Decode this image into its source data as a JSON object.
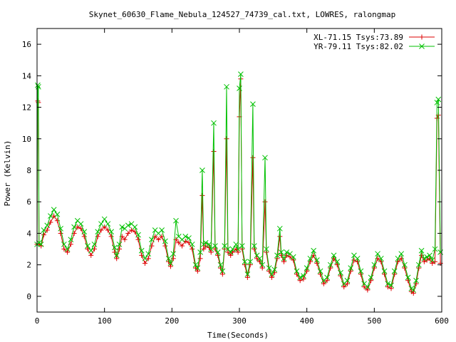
{
  "chart_data": {
    "type": "line",
    "title": "Skynet_60630_Flame_Nebula_124527_74739_cal.txt, LOWRES, ralongmap",
    "xlabel": "Time(Seconds)",
    "ylabel": "Power (Kelvin)",
    "xlim": [
      0,
      600
    ],
    "ylim": [
      -1,
      17
    ],
    "x_ticks": [
      "0",
      "100",
      "200",
      "300",
      "400",
      "500",
      "600"
    ],
    "y_ticks": [
      "0",
      "2",
      "4",
      "6",
      "8",
      "10",
      "12",
      "14",
      "16"
    ],
    "x_tick_values": [
      0,
      100,
      200,
      300,
      400,
      500,
      600
    ],
    "y_tick_values": [
      0,
      2,
      4,
      6,
      8,
      10,
      12,
      14,
      16
    ],
    "grid": false,
    "legend_position": "top-right",
    "series": [
      {
        "name": "XL-71.15 Tsys:73.89",
        "color": "#dd0000",
        "marker": "plus",
        "points": [
          [
            0,
            3.3
          ],
          [
            1,
            12.4
          ],
          [
            2,
            12.3
          ],
          [
            3,
            3.3
          ],
          [
            6,
            3.2
          ],
          [
            10,
            3.9
          ],
          [
            15,
            4.2
          ],
          [
            20,
            4.7
          ],
          [
            25,
            5.1
          ],
          [
            30,
            4.8
          ],
          [
            35,
            4.0
          ],
          [
            40,
            3.0
          ],
          [
            45,
            2.8
          ],
          [
            50,
            3.3
          ],
          [
            55,
            4.0
          ],
          [
            60,
            4.4
          ],
          [
            65,
            4.3
          ],
          [
            70,
            3.8
          ],
          [
            75,
            3.0
          ],
          [
            80,
            2.6
          ],
          [
            85,
            3.0
          ],
          [
            90,
            3.8
          ],
          [
            95,
            4.2
          ],
          [
            100,
            4.4
          ],
          [
            105,
            4.2
          ],
          [
            110,
            3.8
          ],
          [
            115,
            2.8
          ],
          [
            118,
            2.4
          ],
          [
            122,
            3.0
          ],
          [
            126,
            3.8
          ],
          [
            130,
            3.6
          ],
          [
            135,
            4.0
          ],
          [
            140,
            4.2
          ],
          [
            145,
            4.1
          ],
          [
            150,
            3.6
          ],
          [
            155,
            2.6
          ],
          [
            160,
            2.1
          ],
          [
            165,
            2.4
          ],
          [
            170,
            3.2
          ],
          [
            175,
            3.8
          ],
          [
            180,
            3.6
          ],
          [
            185,
            3.8
          ],
          [
            190,
            3.2
          ],
          [
            195,
            2.2
          ],
          [
            198,
            1.9
          ],
          [
            202,
            2.4
          ],
          [
            206,
            3.6
          ],
          [
            210,
            3.4
          ],
          [
            215,
            3.2
          ],
          [
            220,
            3.5
          ],
          [
            225,
            3.4
          ],
          [
            230,
            3.0
          ],
          [
            235,
            1.8
          ],
          [
            238,
            1.6
          ],
          [
            242,
            2.4
          ],
          [
            245,
            6.4
          ],
          [
            247,
            3.0
          ],
          [
            250,
            3.2
          ],
          [
            255,
            3.1
          ],
          [
            258,
            2.8
          ],
          [
            262,
            9.2
          ],
          [
            264,
            3.0
          ],
          [
            268,
            2.6
          ],
          [
            272,
            1.8
          ],
          [
            275,
            1.4
          ],
          [
            278,
            3.0
          ],
          [
            281,
            10.0
          ],
          [
            283,
            2.8
          ],
          [
            287,
            2.6
          ],
          [
            290,
            2.8
          ],
          [
            295,
            3.0
          ],
          [
            298,
            2.8
          ],
          [
            300,
            11.4
          ],
          [
            302,
            13.8
          ],
          [
            304,
            3.0
          ],
          [
            308,
            2.0
          ],
          [
            312,
            1.2
          ],
          [
            316,
            2.0
          ],
          [
            320,
            8.8
          ],
          [
            322,
            3.0
          ],
          [
            326,
            2.4
          ],
          [
            330,
            2.2
          ],
          [
            334,
            1.8
          ],
          [
            338,
            6.0
          ],
          [
            340,
            2.8
          ],
          [
            344,
            1.6
          ],
          [
            348,
            1.2
          ],
          [
            352,
            1.5
          ],
          [
            356,
            2.4
          ],
          [
            360,
            3.8
          ],
          [
            362,
            2.6
          ],
          [
            366,
            2.2
          ],
          [
            370,
            2.6
          ],
          [
            375,
            2.5
          ],
          [
            380,
            2.3
          ],
          [
            385,
            1.4
          ],
          [
            390,
            1.0
          ],
          [
            395,
            1.1
          ],
          [
            400,
            1.6
          ],
          [
            405,
            2.2
          ],
          [
            410,
            2.6
          ],
          [
            415,
            2.1
          ],
          [
            420,
            1.4
          ],
          [
            425,
            0.8
          ],
          [
            430,
            1.0
          ],
          [
            435,
            1.8
          ],
          [
            440,
            2.4
          ],
          [
            445,
            2.0
          ],
          [
            450,
            1.3
          ],
          [
            455,
            0.6
          ],
          [
            460,
            0.8
          ],
          [
            465,
            1.6
          ],
          [
            470,
            2.3
          ],
          [
            475,
            2.2
          ],
          [
            480,
            1.4
          ],
          [
            485,
            0.6
          ],
          [
            490,
            0.4
          ],
          [
            495,
            1.0
          ],
          [
            500,
            1.8
          ],
          [
            505,
            2.4
          ],
          [
            510,
            2.2
          ],
          [
            515,
            1.4
          ],
          [
            520,
            0.6
          ],
          [
            525,
            0.5
          ],
          [
            530,
            1.4
          ],
          [
            535,
            2.2
          ],
          [
            540,
            2.4
          ],
          [
            545,
            1.8
          ],
          [
            550,
            1.0
          ],
          [
            555,
            0.3
          ],
          [
            558,
            0.2
          ],
          [
            562,
            0.8
          ],
          [
            566,
            1.8
          ],
          [
            570,
            2.6
          ],
          [
            574,
            2.2
          ],
          [
            578,
            2.3
          ],
          [
            582,
            2.4
          ],
          [
            586,
            2.1
          ],
          [
            590,
            2.2
          ],
          [
            593,
            11.3
          ],
          [
            595,
            11.5
          ],
          [
            598,
            2.1
          ]
        ]
      },
      {
        "name": "YR-79.11 Tsys:82.02",
        "color": "#00c000",
        "marker": "cross",
        "points": [
          [
            0,
            3.3
          ],
          [
            1,
            13.4
          ],
          [
            2,
            13.3
          ],
          [
            3,
            3.4
          ],
          [
            6,
            3.3
          ],
          [
            10,
            4.2
          ],
          [
            15,
            4.5
          ],
          [
            20,
            5.1
          ],
          [
            25,
            5.5
          ],
          [
            30,
            5.2
          ],
          [
            35,
            4.3
          ],
          [
            40,
            3.3
          ],
          [
            45,
            3.0
          ],
          [
            50,
            3.6
          ],
          [
            55,
            4.4
          ],
          [
            60,
            4.8
          ],
          [
            65,
            4.6
          ],
          [
            70,
            4.1
          ],
          [
            75,
            3.2
          ],
          [
            80,
            2.9
          ],
          [
            85,
            3.3
          ],
          [
            90,
            4.1
          ],
          [
            95,
            4.6
          ],
          [
            100,
            4.9
          ],
          [
            105,
            4.6
          ],
          [
            110,
            4.1
          ],
          [
            115,
            3.1
          ],
          [
            118,
            2.6
          ],
          [
            122,
            3.3
          ],
          [
            126,
            4.4
          ],
          [
            130,
            4.3
          ],
          [
            135,
            4.5
          ],
          [
            140,
            4.6
          ],
          [
            145,
            4.4
          ],
          [
            150,
            3.9
          ],
          [
            155,
            2.9
          ],
          [
            160,
            2.4
          ],
          [
            165,
            2.7
          ],
          [
            170,
            3.6
          ],
          [
            175,
            4.2
          ],
          [
            180,
            4.0
          ],
          [
            185,
            4.2
          ],
          [
            190,
            3.5
          ],
          [
            195,
            2.4
          ],
          [
            198,
            2.1
          ],
          [
            202,
            2.7
          ],
          [
            206,
            4.8
          ],
          [
            210,
            3.8
          ],
          [
            215,
            3.6
          ],
          [
            220,
            3.8
          ],
          [
            225,
            3.7
          ],
          [
            230,
            3.3
          ],
          [
            235,
            2.0
          ],
          [
            238,
            1.8
          ],
          [
            242,
            2.8
          ],
          [
            245,
            8.0
          ],
          [
            247,
            3.3
          ],
          [
            250,
            3.4
          ],
          [
            255,
            3.3
          ],
          [
            258,
            3.0
          ],
          [
            262,
            11.0
          ],
          [
            264,
            3.2
          ],
          [
            268,
            2.8
          ],
          [
            272,
            2.0
          ],
          [
            275,
            1.6
          ],
          [
            278,
            3.2
          ],
          [
            281,
            13.3
          ],
          [
            283,
            3.0
          ],
          [
            287,
            2.8
          ],
          [
            290,
            3.0
          ],
          [
            295,
            3.3
          ],
          [
            298,
            3.0
          ],
          [
            300,
            13.2
          ],
          [
            302,
            14.1
          ],
          [
            304,
            3.2
          ],
          [
            308,
            2.2
          ],
          [
            312,
            1.4
          ],
          [
            316,
            2.2
          ],
          [
            320,
            12.2
          ],
          [
            322,
            3.2
          ],
          [
            326,
            2.6
          ],
          [
            330,
            2.4
          ],
          [
            334,
            2.0
          ],
          [
            338,
            8.8
          ],
          [
            340,
            3.0
          ],
          [
            344,
            1.8
          ],
          [
            348,
            1.4
          ],
          [
            352,
            1.7
          ],
          [
            356,
            2.6
          ],
          [
            360,
            4.3
          ],
          [
            362,
            2.8
          ],
          [
            366,
            2.4
          ],
          [
            370,
            2.8
          ],
          [
            375,
            2.7
          ],
          [
            380,
            2.5
          ],
          [
            385,
            1.6
          ],
          [
            390,
            1.2
          ],
          [
            395,
            1.3
          ],
          [
            400,
            1.8
          ],
          [
            405,
            2.4
          ],
          [
            410,
            2.9
          ],
          [
            415,
            2.3
          ],
          [
            420,
            1.6
          ],
          [
            425,
            1.0
          ],
          [
            430,
            1.2
          ],
          [
            435,
            2.0
          ],
          [
            440,
            2.6
          ],
          [
            445,
            2.2
          ],
          [
            450,
            1.5
          ],
          [
            455,
            0.8
          ],
          [
            460,
            1.0
          ],
          [
            465,
            1.8
          ],
          [
            470,
            2.6
          ],
          [
            475,
            2.4
          ],
          [
            480,
            1.6
          ],
          [
            485,
            0.8
          ],
          [
            490,
            0.6
          ],
          [
            495,
            1.2
          ],
          [
            500,
            2.0
          ],
          [
            505,
            2.7
          ],
          [
            510,
            2.4
          ],
          [
            515,
            1.6
          ],
          [
            520,
            0.8
          ],
          [
            525,
            0.7
          ],
          [
            530,
            1.6
          ],
          [
            535,
            2.4
          ],
          [
            540,
            2.7
          ],
          [
            545,
            2.0
          ],
          [
            550,
            1.2
          ],
          [
            555,
            0.5
          ],
          [
            558,
            0.4
          ],
          [
            562,
            1.0
          ],
          [
            566,
            2.0
          ],
          [
            570,
            2.9
          ],
          [
            574,
            2.4
          ],
          [
            578,
            2.5
          ],
          [
            582,
            2.6
          ],
          [
            586,
            2.3
          ],
          [
            590,
            3.0
          ],
          [
            593,
            12.3
          ],
          [
            595,
            12.5
          ],
          [
            598,
            2.8
          ]
        ]
      }
    ]
  }
}
